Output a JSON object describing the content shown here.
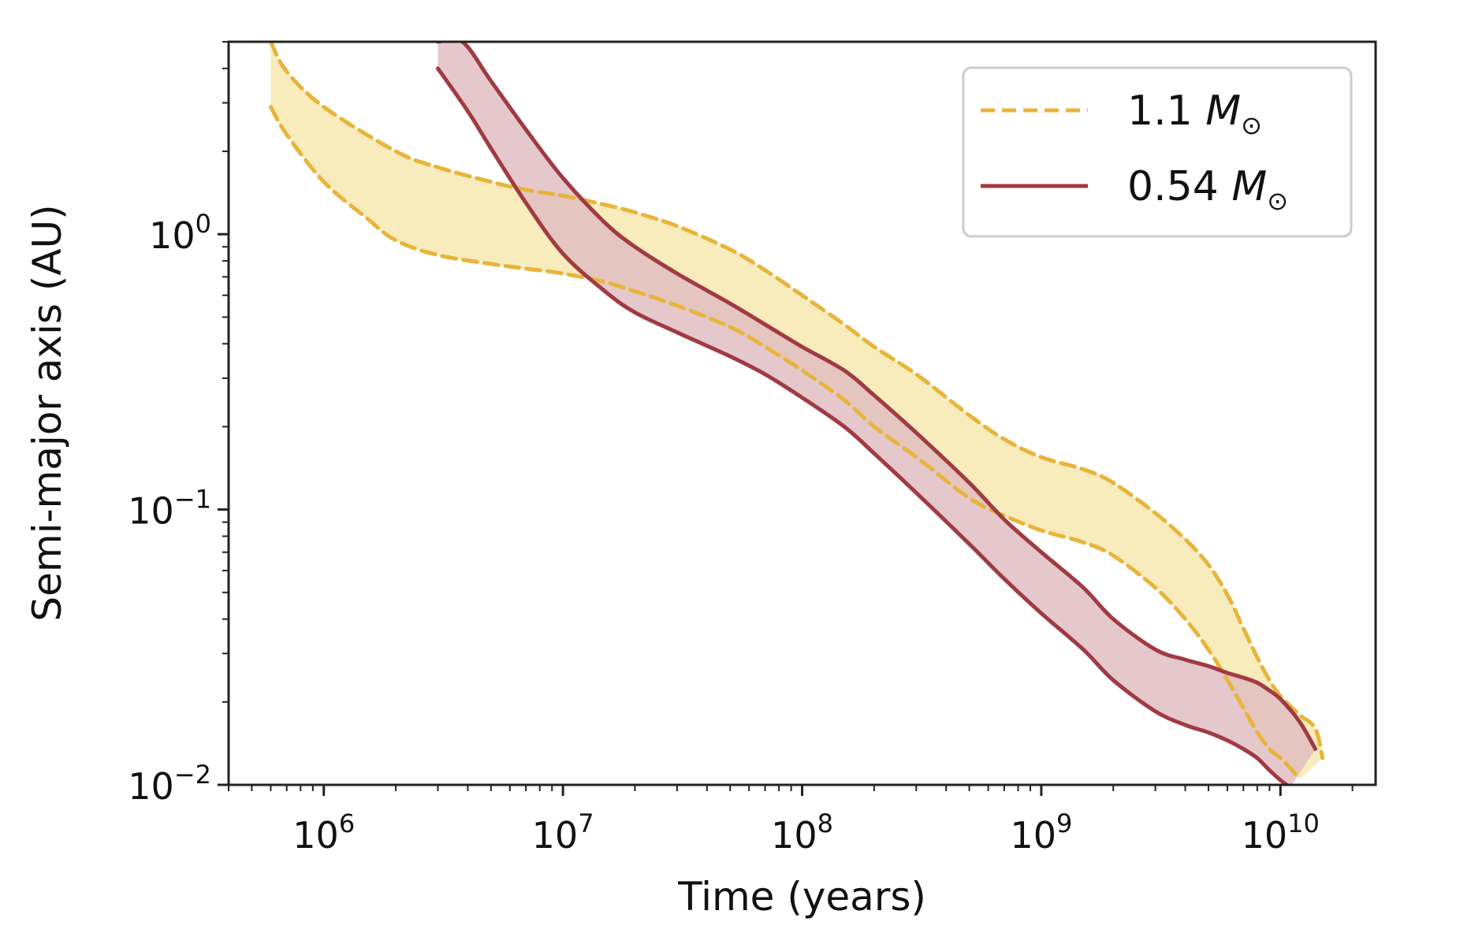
{
  "chart_data": {
    "type": "area",
    "xscale": "log",
    "yscale": "log",
    "xlabel": "Time (years)",
    "ylabel": "Semi-major axis (AU)",
    "xlim": [
      400000,
      25000000000
    ],
    "ylim": [
      0.01,
      5
    ],
    "xticks": [
      {
        "value": 1000000,
        "base": "10",
        "exp": "6"
      },
      {
        "value": 10000000,
        "base": "10",
        "exp": "7"
      },
      {
        "value": 100000000,
        "base": "10",
        "exp": "8"
      },
      {
        "value": 1000000000,
        "base": "10",
        "exp": "9"
      },
      {
        "value": 10000000000,
        "base": "10",
        "exp": "10"
      }
    ],
    "yticks": [
      {
        "value": 1,
        "base": "10",
        "exp": "0"
      },
      {
        "value": 0.1,
        "base": "10",
        "exp": "−1"
      },
      {
        "value": 0.01,
        "base": "10",
        "exp": "−2"
      }
    ],
    "legend_position": "upper right",
    "series": [
      {
        "name": "1.1",
        "name_unit": "M",
        "name_sub": "⊙",
        "color": "#e8b53a",
        "fill": "#f7e6ad",
        "line_style": "dashed",
        "upper": [
          [
            600000,
            5.0
          ],
          [
            700000,
            3.9
          ],
          [
            1000000,
            2.9
          ],
          [
            2000000,
            2.0
          ],
          [
            3000000,
            1.75
          ],
          [
            5000000,
            1.55
          ],
          [
            7000000,
            1.45
          ],
          [
            10000000,
            1.38
          ],
          [
            15000000,
            1.28
          ],
          [
            20000000,
            1.2
          ],
          [
            30000000,
            1.07
          ],
          [
            50000000,
            0.88
          ],
          [
            70000000,
            0.74
          ],
          [
            100000000,
            0.6
          ],
          [
            150000000,
            0.47
          ],
          [
            200000000,
            0.39
          ],
          [
            300000000,
            0.31
          ],
          [
            500000000,
            0.22
          ],
          [
            700000000,
            0.18
          ],
          [
            1000000000,
            0.155
          ],
          [
            1500000000,
            0.14
          ],
          [
            2000000000,
            0.125
          ],
          [
            3000000000,
            0.097
          ],
          [
            4000000000,
            0.078
          ],
          [
            5000000000,
            0.063
          ],
          [
            6000000000,
            0.049
          ],
          [
            7000000000,
            0.037
          ],
          [
            8000000000,
            0.029
          ],
          [
            9000000000,
            0.024
          ],
          [
            10000000000,
            0.021
          ],
          [
            12000000000,
            0.018
          ],
          [
            14000000000,
            0.016
          ],
          [
            15000000000,
            0.0125
          ]
        ],
        "lower": [
          [
            600000,
            2.9
          ],
          [
            700000,
            2.3
          ],
          [
            1000000,
            1.55
          ],
          [
            1500000,
            1.15
          ],
          [
            2000000,
            0.95
          ],
          [
            3000000,
            0.84
          ],
          [
            5000000,
            0.78
          ],
          [
            7000000,
            0.75
          ],
          [
            10000000,
            0.72
          ],
          [
            15000000,
            0.67
          ],
          [
            20000000,
            0.62
          ],
          [
            30000000,
            0.55
          ],
          [
            50000000,
            0.46
          ],
          [
            70000000,
            0.39
          ],
          [
            100000000,
            0.32
          ],
          [
            150000000,
            0.25
          ],
          [
            200000000,
            0.2
          ],
          [
            300000000,
            0.155
          ],
          [
            500000000,
            0.11
          ],
          [
            700000000,
            0.095
          ],
          [
            1000000000,
            0.084
          ],
          [
            1500000000,
            0.076
          ],
          [
            2000000000,
            0.068
          ],
          [
            3000000000,
            0.052
          ],
          [
            4000000000,
            0.04
          ],
          [
            5000000000,
            0.031
          ],
          [
            6000000000,
            0.024
          ],
          [
            7000000000,
            0.019
          ],
          [
            8000000000,
            0.0155
          ],
          [
            9000000000,
            0.0135
          ],
          [
            10000000000,
            0.0125
          ],
          [
            11000000000,
            0.0115
          ],
          [
            12000000000,
            0.0105
          ]
        ]
      },
      {
        "name": "0.54",
        "name_unit": "M",
        "name_sub": "⊙",
        "color": "#a13a42",
        "fill": "#dfbcc1",
        "line_style": "solid",
        "upper": [
          [
            3000000,
            5.0
          ],
          [
            3800000,
            5.0
          ],
          [
            5000000,
            3.6
          ],
          [
            7000000,
            2.4
          ],
          [
            10000000,
            1.6
          ],
          [
            15000000,
            1.1
          ],
          [
            20000000,
            0.9
          ],
          [
            30000000,
            0.72
          ],
          [
            50000000,
            0.56
          ],
          [
            70000000,
            0.47
          ],
          [
            100000000,
            0.39
          ],
          [
            150000000,
            0.32
          ],
          [
            200000000,
            0.26
          ],
          [
            300000000,
            0.19
          ],
          [
            500000000,
            0.125
          ],
          [
            700000000,
            0.092
          ],
          [
            1000000000,
            0.07
          ],
          [
            1500000000,
            0.052
          ],
          [
            2000000000,
            0.04
          ],
          [
            3000000000,
            0.031
          ],
          [
            4000000000,
            0.0285
          ],
          [
            5000000000,
            0.027
          ],
          [
            6000000000,
            0.0255
          ],
          [
            7000000000,
            0.0245
          ],
          [
            8000000000,
            0.0235
          ],
          [
            9000000000,
            0.022
          ],
          [
            10000000000,
            0.0205
          ],
          [
            12000000000,
            0.017
          ],
          [
            14000000000,
            0.0135
          ]
        ],
        "lower": [
          [
            3000000,
            4.0
          ],
          [
            4000000,
            2.8
          ],
          [
            5000000,
            2.05
          ],
          [
            7000000,
            1.3
          ],
          [
            10000000,
            0.85
          ],
          [
            15000000,
            0.62
          ],
          [
            20000000,
            0.52
          ],
          [
            30000000,
            0.44
          ],
          [
            50000000,
            0.36
          ],
          [
            70000000,
            0.31
          ],
          [
            100000000,
            0.255
          ],
          [
            150000000,
            0.2
          ],
          [
            200000000,
            0.16
          ],
          [
            300000000,
            0.115
          ],
          [
            500000000,
            0.075
          ],
          [
            700000000,
            0.056
          ],
          [
            1000000000,
            0.042
          ],
          [
            1500000000,
            0.031
          ],
          [
            2000000000,
            0.024
          ],
          [
            3000000000,
            0.0185
          ],
          [
            4000000000,
            0.0165
          ],
          [
            5000000000,
            0.0155
          ],
          [
            6000000000,
            0.0145
          ],
          [
            7000000000,
            0.0135
          ],
          [
            8000000000,
            0.0125
          ],
          [
            9000000000,
            0.0113
          ],
          [
            10000000000,
            0.0104
          ],
          [
            11000000000,
            0.0098
          ]
        ]
      }
    ]
  }
}
